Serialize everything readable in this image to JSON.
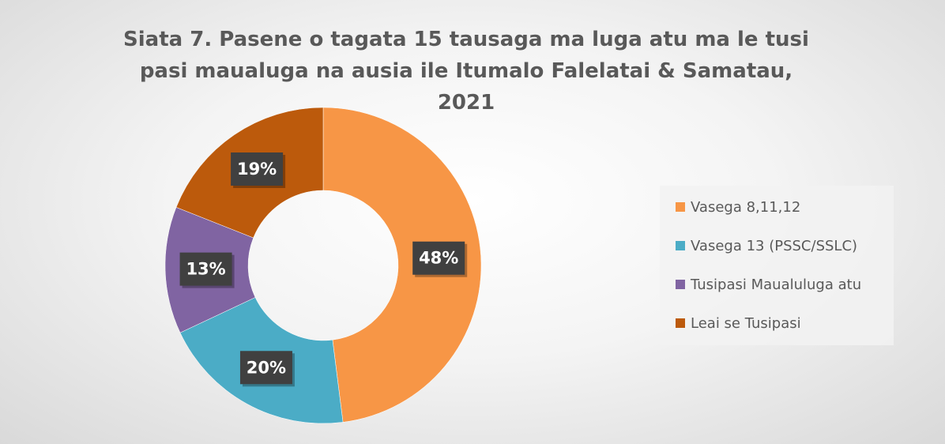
{
  "chart_data": {
    "type": "donut",
    "title": "Siata 7. Pasene o tagata 15 tausaga ma luga atu ma le tusi pasi maualuga na ausia ile Itumalo Falelatai & Samatau, 2021",
    "categories": [
      "Vasega 8,11,12",
      "Vasega 13 (PSSC/SSLC)",
      "Tusipasi Maualuluga atu",
      "Leai se Tusipasi"
    ],
    "values": [
      48,
      20,
      13,
      19
    ],
    "value_labels": [
      "48%",
      "20%",
      "13%",
      "19%"
    ],
    "colors": [
      "#f79646",
      "#4bacc6",
      "#8064a2",
      "#bc5a0c"
    ],
    "legend": "right"
  }
}
